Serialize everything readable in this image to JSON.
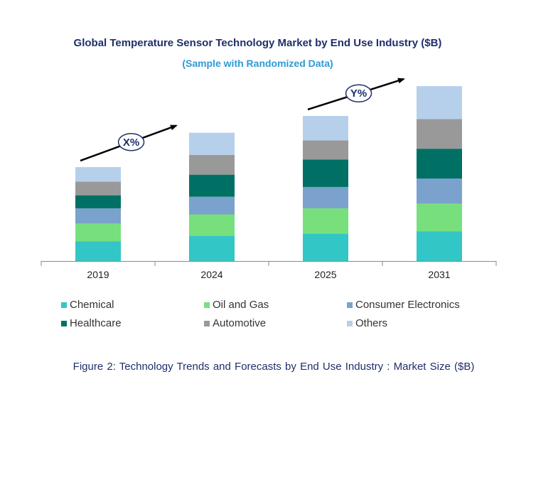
{
  "chart_data": {
    "type": "bar",
    "stacked": true,
    "title": "Global Temperature Sensor Technology Market by End Use Industry ($B)",
    "subtitle": "(Sample with Randomized Data)",
    "xlabel": "",
    "ylabel": "",
    "categories": [
      "2019",
      "2024",
      "2025",
      "2031"
    ],
    "series": [
      {
        "name": "Chemical",
        "color": "#33c6c6",
        "values": [
          26,
          33,
          36,
          39
        ]
      },
      {
        "name": "Oil and Gas",
        "color": "#77e07c",
        "values": [
          23,
          28,
          33,
          36
        ]
      },
      {
        "name": "Consumer Electronics",
        "color": "#7aa2cc",
        "values": [
          20,
          23,
          28,
          33
        ]
      },
      {
        "name": "Healthcare",
        "color": "#007065",
        "values": [
          17,
          29,
          36,
          39
        ]
      },
      {
        "name": "Automotive",
        "color": "#999999",
        "values": [
          18,
          26,
          25,
          39
        ]
      },
      {
        "name": "Others",
        "color": "#b6d0ec",
        "values": [
          19,
          29,
          32,
          43
        ]
      }
    ],
    "ylim": [
      0,
      230
    ],
    "grid": false,
    "legend": "bottom",
    "annotations": [
      {
        "label": "X%",
        "from": "2019",
        "to": "2024"
      },
      {
        "label": "Y%",
        "from": "2025",
        "to": "2031"
      }
    ]
  },
  "caption": "Figure 2: Technology Trends and Forecasts by End Use Industry : Market Size ($B)"
}
